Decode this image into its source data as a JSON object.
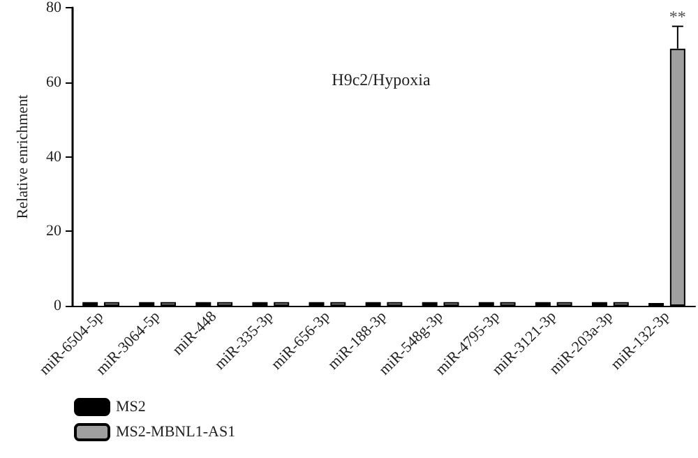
{
  "chart_data": {
    "type": "bar",
    "title": "H9c2/Hypoxia",
    "ylabel": "Relative enrichment",
    "categories": [
      "miR-6504-5p",
      "miR-3064-5p",
      "miR-448",
      "miR-335-3p",
      "miR-656-3p",
      "miR-188-3p",
      "miR-548g-3p",
      "miR-4795-3p",
      "miR-3121-3p",
      "miR-203a-3p",
      "miR-132-3p"
    ],
    "series": [
      {
        "name": "MS2",
        "color": "#000000",
        "values": [
          1,
          1,
          1,
          1,
          1,
          1,
          1,
          1,
          1,
          1,
          0.5
        ]
      },
      {
        "name": "MS2-MBNL1-AS1",
        "color": "#a0a0a0",
        "values": [
          1,
          1,
          1,
          1,
          1,
          1,
          1,
          1,
          1,
          1,
          69
        ],
        "errors": [
          null,
          null,
          null,
          null,
          null,
          null,
          null,
          null,
          null,
          null,
          6
        ]
      }
    ],
    "annotations": [
      {
        "text": "**",
        "x": "miR-132-3p",
        "y": 75
      }
    ],
    "ylim": [
      0,
      80
    ],
    "yticks": [
      0,
      20,
      40,
      60,
      80
    ],
    "grid": false,
    "legend": "bottom left"
  }
}
